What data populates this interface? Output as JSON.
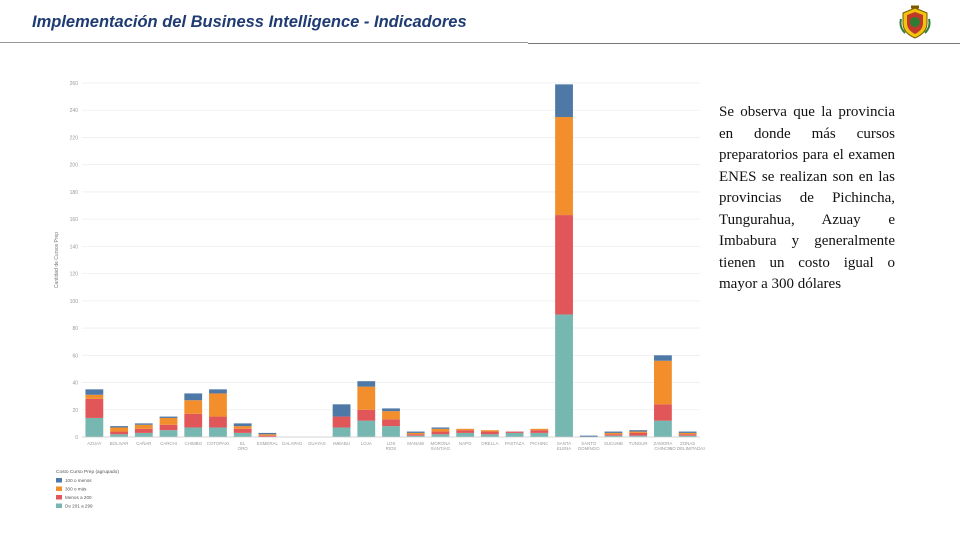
{
  "header": {
    "title": "Implementación del Business Intelligence - Indicadores"
  },
  "logo": {
    "icon": "university-crest-icon",
    "colors": [
      "#c0392b",
      "#f1c40f",
      "#2e7d32"
    ]
  },
  "note": {
    "text": "Se observa que la provincia en donde más cursos preparatorios para el examen ENES se realizan son en las provincias de Pichincha, Tungurahua, Azuay e Imbabura y generalmente tienen un costo igual o mayor a 300 dólares"
  },
  "chart_data": {
    "type": "bar",
    "stacked": true,
    "ylabel": "Cantidad de Cursos Prep",
    "ylim": [
      0,
      260
    ],
    "yticks": [
      0,
      20,
      40,
      60,
      80,
      100,
      120,
      140,
      160,
      180,
      200,
      220,
      240,
      260
    ],
    "grid": true,
    "categories": [
      "AZUAY",
      "BOLIVAR",
      "CAÑAR",
      "CARCHI",
      "CHIMBO",
      "COTOPAXI",
      "EL ORO",
      "ESMERAL",
      "GALAPAG",
      "GUAYAS",
      "IMBABU",
      "LOJA",
      "LOS RIOS",
      "MANABI",
      "MORONA SANTIAG",
      "NAPO",
      "ORELLA",
      "PASTAZA",
      "PICHINC",
      "SANTA ELENA",
      "SANTO DOMINGO",
      "SUCUMB",
      "TUNGUR",
      "ZAMORA CHINCH",
      "ZONAS NO DELIMITADAS"
    ],
    "series": [
      {
        "name": "De 201 a 299",
        "color": "#76b7b2",
        "values": [
          14,
          2,
          3,
          5,
          7,
          7,
          3,
          0,
          0,
          0,
          7,
          12,
          8,
          1,
          2,
          3,
          2,
          3,
          3,
          90,
          0,
          1,
          1,
          12,
          1
        ]
      },
      {
        "name": "Menos a 200",
        "color": "#e15759",
        "values": [
          14,
          2,
          3,
          4,
          10,
          8,
          3,
          1,
          0,
          0,
          8,
          8,
          5,
          1,
          2,
          2,
          2,
          1,
          2,
          73,
          0,
          1,
          2,
          12,
          1
        ]
      },
      {
        "name": "300 o más",
        "color": "#f28e2b",
        "values": [
          3,
          3,
          3,
          5,
          10,
          17,
          2,
          1,
          0,
          0,
          0,
          17,
          6,
          1,
          2,
          1,
          1,
          0,
          1,
          72,
          0,
          1,
          1,
          32,
          1
        ]
      },
      {
        "name": "100 o menos",
        "color": "#4e79a7",
        "values": [
          4,
          1,
          1,
          1,
          5,
          3,
          2,
          1,
          0,
          0,
          9,
          4,
          2,
          1,
          1,
          0,
          0,
          0,
          0,
          24,
          1,
          1,
          1,
          4,
          1
        ]
      }
    ],
    "legend": {
      "title": "Costo Curso Prep (agrupado)",
      "placement": "bottom-left"
    }
  }
}
